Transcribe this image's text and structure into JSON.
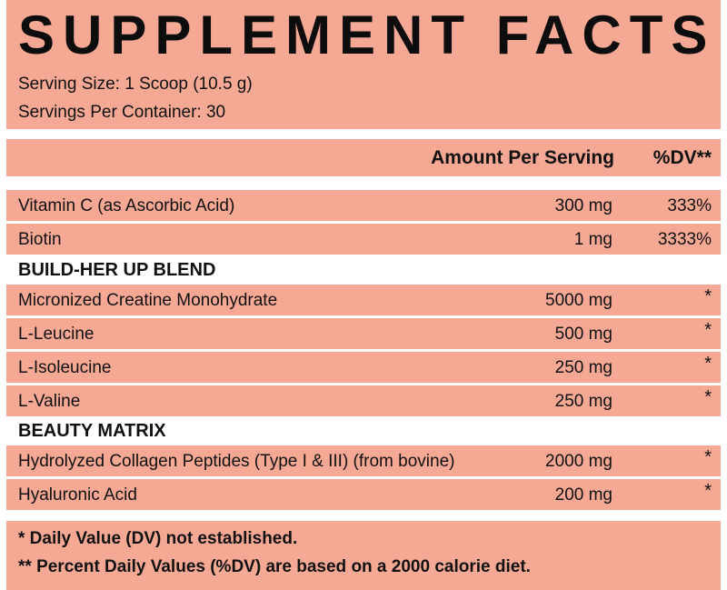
{
  "header": {
    "title": "SUPPLEMENT FACTS",
    "serving_size": "Serving Size: 1 Scoop (10.5 g)",
    "servings_per_container": "Servings Per Container: 30"
  },
  "columns": {
    "amount": "Amount Per Serving",
    "dv": "%DV**"
  },
  "vitamins": [
    {
      "name": "Vitamin C (as Ascorbic Acid)",
      "amount": "300 mg",
      "dv": "333%"
    },
    {
      "name": "Biotin",
      "amount": "1 mg",
      "dv": "3333%"
    }
  ],
  "blends": [
    {
      "title": "BUILD-HER UP BLEND",
      "items": [
        {
          "name": "Micronized Creatine Monohydrate",
          "amount": "5000 mg",
          "dv": "*"
        },
        {
          "name": "L-Leucine",
          "amount": "500 mg",
          "dv": "*"
        },
        {
          "name": "L-Isoleucine",
          "amount": "250 mg",
          "dv": "*"
        },
        {
          "name": "L-Valine",
          "amount": "250 mg",
          "dv": "*"
        }
      ]
    },
    {
      "title": "BEAUTY MATRIX",
      "items": [
        {
          "name": "Hydrolyzed Collagen Peptides (Type I & III) (from bovine)",
          "amount": "2000 mg",
          "dv": "*"
        },
        {
          "name": "Hyaluronic Acid",
          "amount": "200 mg",
          "dv": "*"
        }
      ]
    }
  ],
  "footnotes": [
    "* Daily Value (DV) not established.",
    "** Percent Daily Values (%DV) are based on a 2000 calorie diet."
  ],
  "colors": {
    "band": "#f5a894",
    "text": "#111111",
    "background": "#ffffff"
  }
}
